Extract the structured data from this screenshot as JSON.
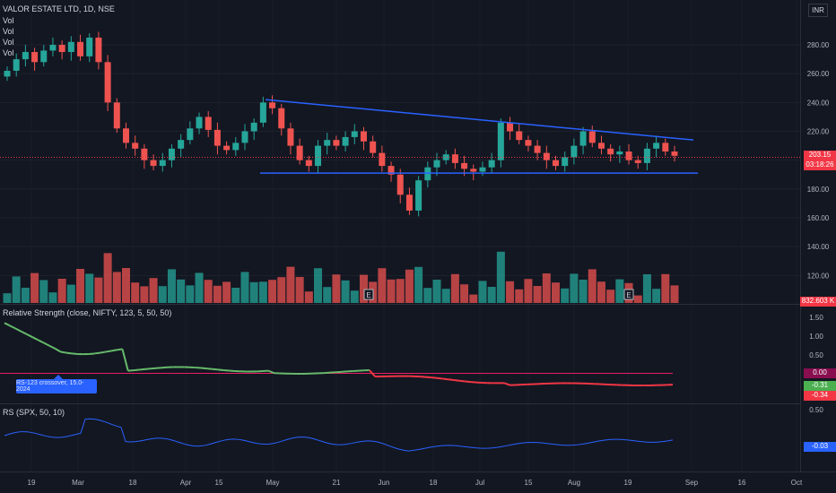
{
  "header": {
    "symbol": "VALOR ESTATE LTD, 1D, NSE",
    "vol_labels": [
      "Vol",
      "Vol",
      "Vol",
      "Vol"
    ],
    "currency": "INR"
  },
  "price_axis": [
    "280.00",
    "260.00",
    "240.00",
    "220.00",
    "200.00",
    "180.00",
    "160.00",
    "140.00",
    "120.00"
  ],
  "price_tag": {
    "price": "203.15",
    "countdown": "03:18:26",
    "color": "#f23645"
  },
  "volume_tag": {
    "value": "832.603 K",
    "color": "#f23645"
  },
  "rs_panel": {
    "title": "Relative Strength (close, NIFTY, 123, 5, 50, 50)",
    "axis": [
      "1.50",
      "1.00",
      "0.50",
      "0.00"
    ],
    "tags": [
      {
        "text": "0.00",
        "color": "#880e4f"
      },
      {
        "text": "-0.31",
        "color": "#4caf50"
      },
      {
        "text": "-0.34",
        "color": "#f23645"
      }
    ],
    "tooltip": "RS-123 crossover, 15.0-2024"
  },
  "rs2_panel": {
    "title": "RS (SPX, 50, 10)",
    "axis": [
      "0.50"
    ],
    "tag": {
      "text": "-0.03",
      "color": "#2962ff"
    }
  },
  "time_axis": [
    "19",
    "Mar",
    "18",
    "Apr",
    "15",
    "May",
    "21",
    "Jun",
    "18",
    "Jul",
    "15",
    "Aug",
    "19",
    "Sep",
    "16",
    "Oct"
  ],
  "earnings_marker": "E",
  "colors": {
    "up": "#26a69a",
    "down": "#ef5350",
    "trendline": "#2962ff",
    "rs_up": "#66bb6a",
    "rs_down": "#f23645",
    "bg": "#131722"
  },
  "chart_data": {
    "type": "candlestick",
    "title": "VALOR ESTATE LTD, 1D, NSE",
    "ylim": [
      150,
      295
    ],
    "key_levels": {
      "descending_trendline_start": 242,
      "descending_trendline_end": 214,
      "support": 191
    },
    "approx_closes": [
      262,
      270,
      275,
      268,
      276,
      280,
      275,
      282,
      272,
      285,
      268,
      240,
      222,
      212,
      208,
      200,
      196,
      200,
      208,
      214,
      222,
      230,
      221,
      210,
      207,
      212,
      220,
      226,
      240,
      236,
      222,
      210,
      200,
      196,
      210,
      214,
      210,
      216,
      220,
      213,
      205,
      196,
      190,
      176,
      165,
      186,
      195,
      200,
      204,
      198,
      194,
      192,
      195,
      200,
      226,
      220,
      214,
      210,
      205,
      200,
      196,
      202,
      210,
      220,
      212,
      208,
      204,
      206,
      200,
      198,
      208,
      212,
      206,
      203
    ],
    "volume_note": "daily volume bars, peak in mid-March and early July",
    "rs_line": {
      "start": 1.35,
      "mid": 0.05,
      "end": -0.34,
      "zero_line": 0.0
    },
    "rs_spx": {
      "end": -0.03,
      "range": [
        -0.2,
        0.5
      ]
    }
  }
}
